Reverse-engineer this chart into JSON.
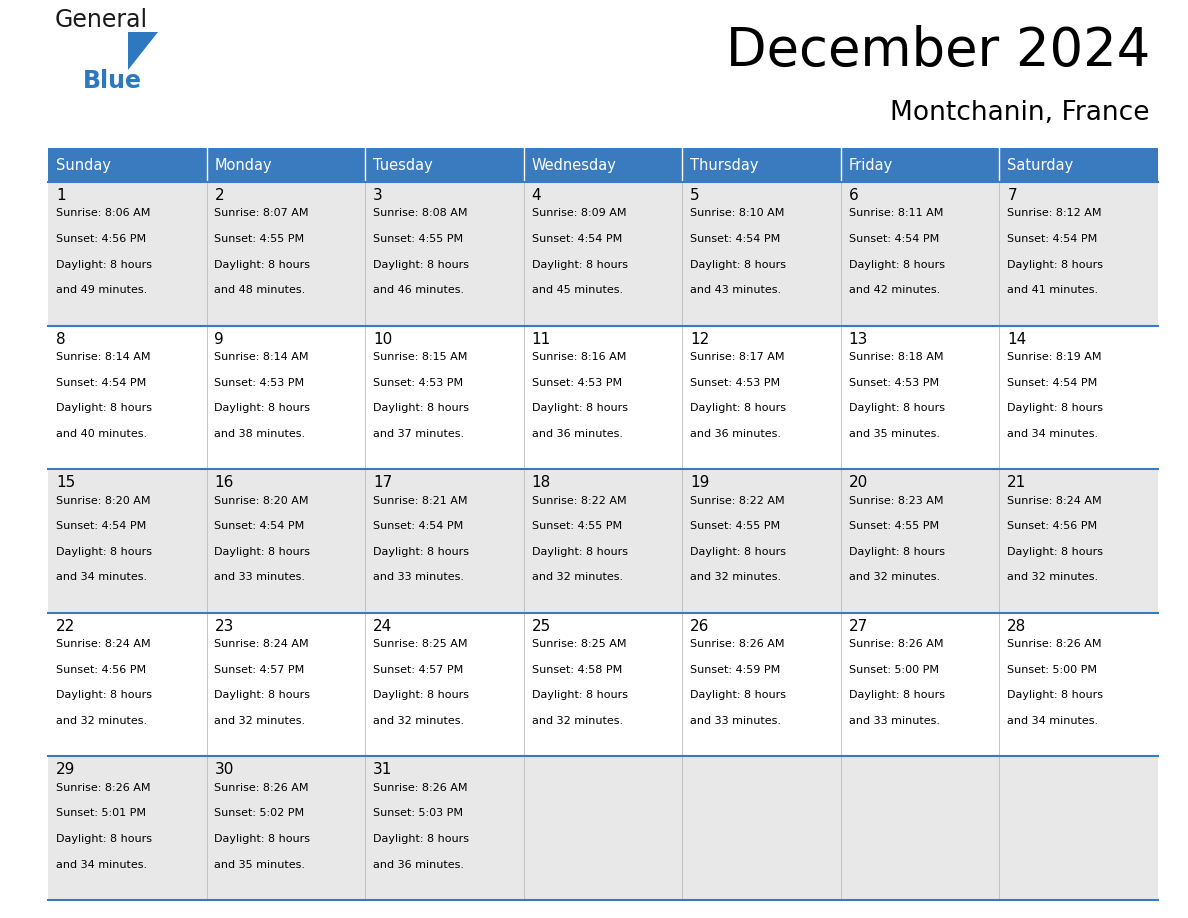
{
  "title": "December 2024",
  "subtitle": "Montchanin, France",
  "header_bg": "#3a7bbf",
  "header_text": "#ffffff",
  "row_bg_odd": "#e8e8e8",
  "row_bg_even": "#ffffff",
  "border_color": "#3a7bbf",
  "day_names": [
    "Sunday",
    "Monday",
    "Tuesday",
    "Wednesday",
    "Thursday",
    "Friday",
    "Saturday"
  ],
  "calendar": [
    [
      {
        "day": 1,
        "sunrise": "8:06 AM",
        "sunset": "4:56 PM",
        "daylight_h": "8 hours",
        "daylight_m": "and 49 minutes."
      },
      {
        "day": 2,
        "sunrise": "8:07 AM",
        "sunset": "4:55 PM",
        "daylight_h": "8 hours",
        "daylight_m": "and 48 minutes."
      },
      {
        "day": 3,
        "sunrise": "8:08 AM",
        "sunset": "4:55 PM",
        "daylight_h": "8 hours",
        "daylight_m": "and 46 minutes."
      },
      {
        "day": 4,
        "sunrise": "8:09 AM",
        "sunset": "4:54 PM",
        "daylight_h": "8 hours",
        "daylight_m": "and 45 minutes."
      },
      {
        "day": 5,
        "sunrise": "8:10 AM",
        "sunset": "4:54 PM",
        "daylight_h": "8 hours",
        "daylight_m": "and 43 minutes."
      },
      {
        "day": 6,
        "sunrise": "8:11 AM",
        "sunset": "4:54 PM",
        "daylight_h": "8 hours",
        "daylight_m": "and 42 minutes."
      },
      {
        "day": 7,
        "sunrise": "8:12 AM",
        "sunset": "4:54 PM",
        "daylight_h": "8 hours",
        "daylight_m": "and 41 minutes."
      }
    ],
    [
      {
        "day": 8,
        "sunrise": "8:14 AM",
        "sunset": "4:54 PM",
        "daylight_h": "8 hours",
        "daylight_m": "and 40 minutes."
      },
      {
        "day": 9,
        "sunrise": "8:14 AM",
        "sunset": "4:53 PM",
        "daylight_h": "8 hours",
        "daylight_m": "and 38 minutes."
      },
      {
        "day": 10,
        "sunrise": "8:15 AM",
        "sunset": "4:53 PM",
        "daylight_h": "8 hours",
        "daylight_m": "and 37 minutes."
      },
      {
        "day": 11,
        "sunrise": "8:16 AM",
        "sunset": "4:53 PM",
        "daylight_h": "8 hours",
        "daylight_m": "and 36 minutes."
      },
      {
        "day": 12,
        "sunrise": "8:17 AM",
        "sunset": "4:53 PM",
        "daylight_h": "8 hours",
        "daylight_m": "and 36 minutes."
      },
      {
        "day": 13,
        "sunrise": "8:18 AM",
        "sunset": "4:53 PM",
        "daylight_h": "8 hours",
        "daylight_m": "and 35 minutes."
      },
      {
        "day": 14,
        "sunrise": "8:19 AM",
        "sunset": "4:54 PM",
        "daylight_h": "8 hours",
        "daylight_m": "and 34 minutes."
      }
    ],
    [
      {
        "day": 15,
        "sunrise": "8:20 AM",
        "sunset": "4:54 PM",
        "daylight_h": "8 hours",
        "daylight_m": "and 34 minutes."
      },
      {
        "day": 16,
        "sunrise": "8:20 AM",
        "sunset": "4:54 PM",
        "daylight_h": "8 hours",
        "daylight_m": "and 33 minutes."
      },
      {
        "day": 17,
        "sunrise": "8:21 AM",
        "sunset": "4:54 PM",
        "daylight_h": "8 hours",
        "daylight_m": "and 33 minutes."
      },
      {
        "day": 18,
        "sunrise": "8:22 AM",
        "sunset": "4:55 PM",
        "daylight_h": "8 hours",
        "daylight_m": "and 32 minutes."
      },
      {
        "day": 19,
        "sunrise": "8:22 AM",
        "sunset": "4:55 PM",
        "daylight_h": "8 hours",
        "daylight_m": "and 32 minutes."
      },
      {
        "day": 20,
        "sunrise": "8:23 AM",
        "sunset": "4:55 PM",
        "daylight_h": "8 hours",
        "daylight_m": "and 32 minutes."
      },
      {
        "day": 21,
        "sunrise": "8:24 AM",
        "sunset": "4:56 PM",
        "daylight_h": "8 hours",
        "daylight_m": "and 32 minutes."
      }
    ],
    [
      {
        "day": 22,
        "sunrise": "8:24 AM",
        "sunset": "4:56 PM",
        "daylight_h": "8 hours",
        "daylight_m": "and 32 minutes."
      },
      {
        "day": 23,
        "sunrise": "8:24 AM",
        "sunset": "4:57 PM",
        "daylight_h": "8 hours",
        "daylight_m": "and 32 minutes."
      },
      {
        "day": 24,
        "sunrise": "8:25 AM",
        "sunset": "4:57 PM",
        "daylight_h": "8 hours",
        "daylight_m": "and 32 minutes."
      },
      {
        "day": 25,
        "sunrise": "8:25 AM",
        "sunset": "4:58 PM",
        "daylight_h": "8 hours",
        "daylight_m": "and 32 minutes."
      },
      {
        "day": 26,
        "sunrise": "8:26 AM",
        "sunset": "4:59 PM",
        "daylight_h": "8 hours",
        "daylight_m": "and 33 minutes."
      },
      {
        "day": 27,
        "sunrise": "8:26 AM",
        "sunset": "5:00 PM",
        "daylight_h": "8 hours",
        "daylight_m": "and 33 minutes."
      },
      {
        "day": 28,
        "sunrise": "8:26 AM",
        "sunset": "5:00 PM",
        "daylight_h": "8 hours",
        "daylight_m": "and 34 minutes."
      }
    ],
    [
      {
        "day": 29,
        "sunrise": "8:26 AM",
        "sunset": "5:01 PM",
        "daylight_h": "8 hours",
        "daylight_m": "and 34 minutes."
      },
      {
        "day": 30,
        "sunrise": "8:26 AM",
        "sunset": "5:02 PM",
        "daylight_h": "8 hours",
        "daylight_m": "and 35 minutes."
      },
      {
        "day": 31,
        "sunrise": "8:26 AM",
        "sunset": "5:03 PM",
        "daylight_h": "8 hours",
        "daylight_m": "and 36 minutes."
      },
      null,
      null,
      null,
      null
    ]
  ],
  "logo_general_color": "#1a1a1a",
  "logo_blue_color": "#2e78c0",
  "logo_triangle_color": "#2e78c0",
  "fig_width": 11.88,
  "fig_height": 9.18,
  "dpi": 100
}
